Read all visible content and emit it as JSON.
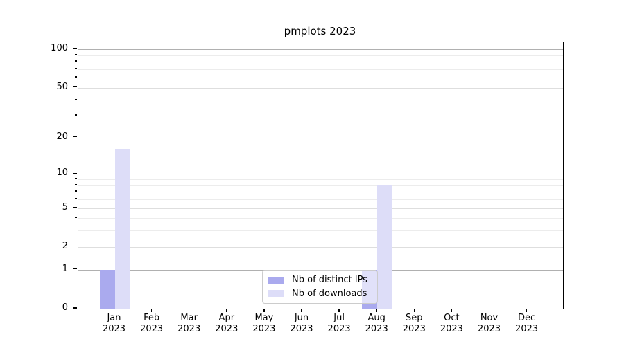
{
  "window": {
    "background": "#ffffff"
  },
  "chart_data": {
    "type": "bar",
    "title": "pmplots 2023",
    "xlabel": "",
    "ylabel": "",
    "categories": [
      "Jan",
      "Feb",
      "Mar",
      "Apr",
      "May",
      "Jun",
      "Jul",
      "Aug",
      "Sep",
      "Oct",
      "Nov",
      "Dec"
    ],
    "category_year": "2023",
    "series": [
      {
        "name": "Nb of distinct IPs",
        "color": "#aaaaee",
        "values": [
          1,
          0,
          0,
          0,
          0,
          0,
          0,
          1,
          0,
          0,
          0,
          0
        ]
      },
      {
        "name": "Nb of downloads",
        "color": "#ddddf8",
        "values": [
          16,
          0,
          0,
          0,
          0,
          0,
          0,
          8,
          0,
          0,
          0,
          0
        ]
      }
    ],
    "yscale": "log1p",
    "ylim": [
      0,
      113
    ],
    "y_major_ticks": [
      {
        "value": 100,
        "label": "100"
      },
      {
        "value": 50,
        "label": "50"
      },
      {
        "value": 20,
        "label": "20"
      },
      {
        "value": 10,
        "label": "10"
      },
      {
        "value": 5,
        "label": "5"
      },
      {
        "value": 2,
        "label": "2"
      },
      {
        "value": 1,
        "label": "1"
      },
      {
        "value": 0,
        "label": "0"
      }
    ],
    "y_decade_gridlines": [
      1,
      10,
      100
    ],
    "y_minor_ticks": [
      3,
      4,
      6,
      7,
      8,
      9,
      30,
      40,
      60,
      70,
      80,
      90
    ],
    "grid": "on",
    "legend_position": "lower center"
  },
  "legend": {
    "items": [
      {
        "label": "Nb of distinct IPs",
        "color": "#aaaaee"
      },
      {
        "label": "Nb of downloads",
        "color": "#ddddf8"
      }
    ]
  }
}
